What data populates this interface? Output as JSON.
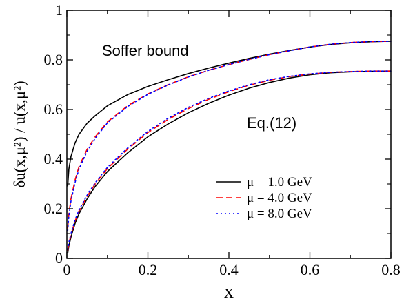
{
  "chart_data": {
    "type": "line",
    "xlabel": "x",
    "ylabel": "δu(x,μ²) / u(x,μ²)",
    "xlim": [
      0,
      0.8
    ],
    "ylim": [
      0,
      1
    ],
    "x_ticks": [
      "0",
      "0.2",
      "0.4",
      "0.6",
      "0.8"
    ],
    "y_ticks": [
      "0",
      "0.2",
      "0.4",
      "0.6",
      "0.8",
      "1"
    ],
    "grid": false,
    "legend_position": "lower-right",
    "annotations": [
      "Soffer bound",
      "Eq.(12)"
    ],
    "series": [
      {
        "name": "μ = 1.0 GeV",
        "color": "#000000",
        "style": "solid",
        "group": "Soffer bound",
        "x": [
          0.002,
          0.005,
          0.01,
          0.02,
          0.03,
          0.05,
          0.07,
          0.1,
          0.15,
          0.2,
          0.25,
          0.3,
          0.35,
          0.4,
          0.45,
          0.5,
          0.55,
          0.6,
          0.65,
          0.7,
          0.75,
          0.8
        ],
        "y": [
          0.29,
          0.36,
          0.41,
          0.465,
          0.5,
          0.545,
          0.575,
          0.615,
          0.66,
          0.693,
          0.72,
          0.745,
          0.767,
          0.787,
          0.806,
          0.823,
          0.838,
          0.852,
          0.862,
          0.869,
          0.873,
          0.875
        ]
      },
      {
        "name": "μ = 4.0 GeV",
        "color": "#ff0000",
        "style": "dashed",
        "group": "Soffer bound",
        "x": [
          0.002,
          0.005,
          0.01,
          0.02,
          0.03,
          0.05,
          0.07,
          0.1,
          0.15,
          0.2,
          0.25,
          0.3,
          0.35,
          0.4,
          0.45,
          0.5,
          0.55,
          0.6,
          0.65,
          0.7,
          0.75,
          0.8
        ],
        "y": [
          0.12,
          0.18,
          0.24,
          0.315,
          0.37,
          0.44,
          0.49,
          0.55,
          0.615,
          0.663,
          0.7,
          0.732,
          0.758,
          0.781,
          0.802,
          0.821,
          0.837,
          0.852,
          0.863,
          0.87,
          0.874,
          0.875
        ]
      },
      {
        "name": "μ = 8.0 GeV",
        "color": "#0000ff",
        "style": "dotted",
        "group": "Soffer bound",
        "x": [
          0.002,
          0.005,
          0.01,
          0.02,
          0.03,
          0.05,
          0.07,
          0.1,
          0.15,
          0.2,
          0.25,
          0.3,
          0.35,
          0.4,
          0.45,
          0.5,
          0.55,
          0.6,
          0.65,
          0.7,
          0.75,
          0.8
        ],
        "y": [
          0.11,
          0.17,
          0.23,
          0.305,
          0.36,
          0.432,
          0.484,
          0.546,
          0.612,
          0.661,
          0.699,
          0.731,
          0.758,
          0.781,
          0.802,
          0.821,
          0.837,
          0.852,
          0.863,
          0.87,
          0.874,
          0.875
        ]
      },
      {
        "name": "",
        "color": "#000000",
        "style": "solid",
        "group": "Eq.(12)",
        "x": [
          0.002,
          0.005,
          0.01,
          0.02,
          0.03,
          0.05,
          0.07,
          0.1,
          0.15,
          0.2,
          0.25,
          0.3,
          0.35,
          0.4,
          0.45,
          0.5,
          0.55,
          0.6,
          0.65,
          0.7,
          0.75,
          0.8
        ],
        "y": [
          0.02,
          0.05,
          0.085,
          0.14,
          0.18,
          0.24,
          0.29,
          0.35,
          0.425,
          0.49,
          0.542,
          0.587,
          0.625,
          0.658,
          0.686,
          0.709,
          0.727,
          0.74,
          0.748,
          0.752,
          0.754,
          0.755
        ]
      },
      {
        "name": "",
        "color": "#ff0000",
        "style": "dashed",
        "group": "Eq.(12)",
        "x": [
          0.002,
          0.005,
          0.01,
          0.02,
          0.03,
          0.05,
          0.07,
          0.1,
          0.15,
          0.2,
          0.25,
          0.3,
          0.35,
          0.4,
          0.45,
          0.5,
          0.55,
          0.6,
          0.65,
          0.7,
          0.75,
          0.8
        ],
        "y": [
          0.03,
          0.06,
          0.095,
          0.15,
          0.19,
          0.25,
          0.3,
          0.362,
          0.44,
          0.507,
          0.56,
          0.604,
          0.641,
          0.672,
          0.698,
          0.718,
          0.733,
          0.743,
          0.75,
          0.753,
          0.755,
          0.755
        ]
      },
      {
        "name": "",
        "color": "#0000ff",
        "style": "dotted",
        "group": "Eq.(12)",
        "x": [
          0.002,
          0.005,
          0.01,
          0.02,
          0.03,
          0.05,
          0.07,
          0.1,
          0.15,
          0.2,
          0.25,
          0.3,
          0.35,
          0.4,
          0.45,
          0.5,
          0.55,
          0.6,
          0.65,
          0.7,
          0.75,
          0.8
        ],
        "y": [
          0.035,
          0.065,
          0.1,
          0.155,
          0.195,
          0.255,
          0.305,
          0.367,
          0.445,
          0.512,
          0.565,
          0.609,
          0.645,
          0.675,
          0.7,
          0.72,
          0.734,
          0.744,
          0.75,
          0.753,
          0.755,
          0.755
        ]
      }
    ]
  }
}
